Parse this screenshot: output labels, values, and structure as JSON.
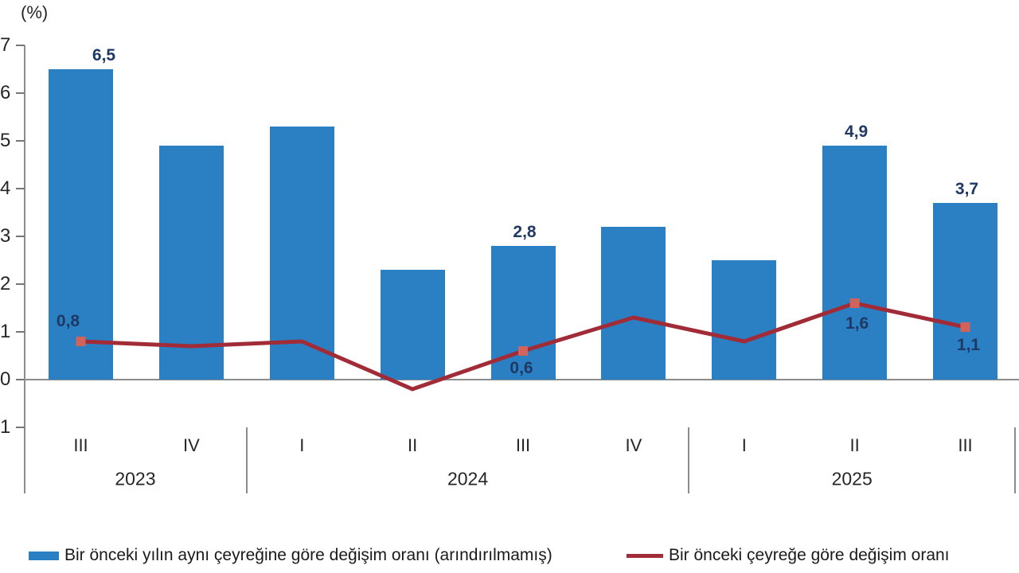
{
  "chart_data": {
    "type": "combo-bar-line",
    "title": "",
    "unit_label": "(%)",
    "decimal_separator": ",",
    "categories": [
      "2023-III",
      "2023-IV",
      "2024-I",
      "2024-II",
      "2024-III",
      "2024-IV",
      "2025-I",
      "2025-II",
      "2025-III"
    ],
    "quarter_labels": [
      "III",
      "IV",
      "I",
      "II",
      "III",
      "IV",
      "I",
      "II",
      "III"
    ],
    "year_groups": [
      {
        "label": "2023",
        "quarters": 2
      },
      {
        "label": "2024",
        "quarters": 4
      },
      {
        "label": "2025",
        "quarters": 3
      }
    ],
    "y_axis": {
      "min": -1,
      "max": 7,
      "tick_values": [
        7,
        6,
        5,
        4,
        3,
        2,
        1,
        0,
        -1
      ],
      "tick_labels": [
        "7",
        "6",
        "5",
        "4",
        "3",
        "2",
        "1",
        "0",
        "1"
      ],
      "grid": false
    },
    "data_label_color": "#1f3864",
    "axis_line_color": "#8c8c8c",
    "legend_position": "bottom",
    "series": [
      {
        "name": "Bir önceki yılın aynı çeyreğine göre değişim oranı (arındırılmamış)",
        "type": "bar",
        "color": "#2b80c4",
        "values": [
          6.5,
          4.9,
          5.3,
          2.3,
          2.8,
          3.2,
          2.5,
          4.9,
          3.7
        ],
        "point_labels": [
          "6,5",
          null,
          null,
          null,
          "2,8",
          null,
          null,
          "4,9",
          "3,7"
        ]
      },
      {
        "name": "Bir önceki çeyreğe göre değişim oranı",
        "type": "line",
        "color": "#a12b36",
        "marker_color": "#d0635a",
        "values": [
          0.8,
          0.7,
          0.8,
          -0.2,
          0.6,
          1.3,
          0.8,
          1.6,
          1.1
        ],
        "point_labels": [
          "0,8",
          null,
          null,
          null,
          "0,6",
          null,
          null,
          "1,6",
          "1,1"
        ],
        "markers": [
          true,
          false,
          false,
          false,
          true,
          false,
          false,
          true,
          true
        ]
      }
    ]
  }
}
